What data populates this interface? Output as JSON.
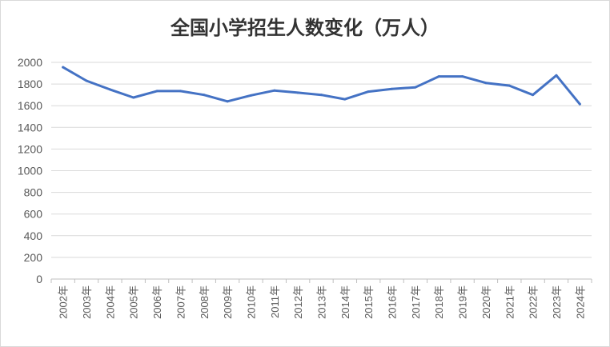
{
  "chart_data": {
    "type": "line",
    "title": "全国小学招生人数变化（万人）",
    "xlabel": "",
    "ylabel": "",
    "ylim": [
      0,
      2000
    ],
    "yticks": [
      0,
      200,
      400,
      600,
      800,
      1000,
      1200,
      1400,
      1600,
      1800,
      2000
    ],
    "grid": true,
    "categories": [
      "2002年",
      "2003年",
      "2004年",
      "2005年",
      "2006年",
      "2007年",
      "2008年",
      "2009年",
      "2010年",
      "2011年",
      "2012年",
      "2013年",
      "2014年",
      "2015年",
      "2016年",
      "2017年",
      "2018年",
      "2019年",
      "2020年",
      "2021年",
      "2022年",
      "2023年",
      "2024年"
    ],
    "series": [
      {
        "color": "#4472c4",
        "values": [
          1955,
          1830,
          1750,
          1675,
          1735,
          1735,
          1700,
          1640,
          1695,
          1740,
          1720,
          1700,
          1660,
          1730,
          1755,
          1770,
          1870,
          1870,
          1810,
          1785,
          1700,
          1880,
          1615
        ]
      }
    ]
  }
}
